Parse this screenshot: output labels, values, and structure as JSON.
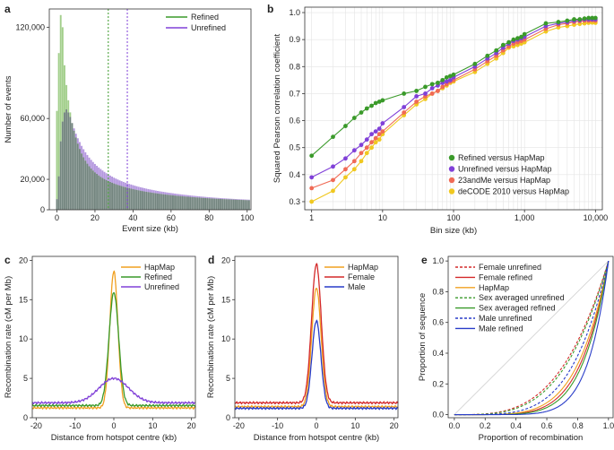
{
  "colors": {
    "refined": "#3a9a2a",
    "refined_fill": "#a3cf8c",
    "unrefined": "#8040d8",
    "unrefined_fill": "#b396de",
    "hapmap": "#f0a020",
    "female": "#d42a2a",
    "male": "#283cc8",
    "d23": "#f06a55",
    "decode": "#f0c820",
    "overlap": "#5a7068"
  },
  "chart_data": [
    {
      "panel": "a",
      "type": "bar",
      "xlabel": "Event size (kb)",
      "ylabel": "Number of events",
      "xlim": [
        -4,
        102
      ],
      "ylim": [
        0,
        132000
      ],
      "xticks": [
        0,
        20,
        40,
        60,
        80,
        100
      ],
      "yticks": [
        0,
        20000,
        60000,
        120000
      ],
      "ytick_labels": [
        "0",
        "20,000",
        "60,000",
        "120,000"
      ],
      "legend": [
        "Refined",
        "Unrefined"
      ],
      "vlines": [
        {
          "x": 27,
          "series": "Refined"
        },
        {
          "x": 37,
          "series": "Unrefined"
        }
      ],
      "series": [
        {
          "name": "Refined",
          "x": [
            0,
            1,
            2,
            3,
            4,
            5,
            6,
            7,
            8,
            9,
            10,
            11,
            12,
            13,
            14,
            15,
            16,
            17,
            18,
            19,
            20,
            21,
            22,
            23,
            24,
            25,
            26,
            27,
            28,
            29,
            30,
            31,
            32,
            33,
            34,
            35,
            36,
            37,
            38,
            39,
            40,
            41,
            42,
            43,
            44,
            45,
            46,
            47,
            48,
            49,
            50,
            51,
            52,
            53,
            54,
            55,
            56,
            57,
            58,
            59,
            60,
            61,
            62,
            63,
            64,
            65,
            66,
            67,
            68,
            69,
            70,
            71,
            72,
            73,
            74,
            75,
            76,
            77,
            78,
            79,
            80,
            81,
            82,
            83,
            84,
            85,
            86,
            87,
            88,
            89,
            90,
            91,
            92,
            93,
            94,
            95,
            96,
            97,
            98,
            99,
            100,
            101
          ],
          "values": [
            65000,
            103000,
            128000,
            120000,
            95000,
            82000,
            72000,
            64000,
            57000,
            52000,
            47500,
            43500,
            40000,
            37000,
            34500,
            32300,
            30300,
            28600,
            27100,
            25800,
            24600,
            23600,
            22600,
            21700,
            20900,
            20200,
            19500,
            18900,
            18300,
            17800,
            17300,
            16800,
            16400,
            16000,
            15600,
            15200,
            14850,
            14500,
            14200,
            13900,
            13600,
            13300,
            13050,
            12800,
            12550,
            12300,
            12050,
            11850,
            11650,
            11450,
            11250,
            11050,
            10870,
            10700,
            10530,
            10370,
            10210,
            10060,
            9910,
            9770,
            9630,
            9500,
            9370,
            9240,
            9120,
            9000,
            8880,
            8770,
            8660,
            8550,
            8450,
            8350,
            8250,
            8150,
            8060,
            7970,
            7880,
            7790,
            7710,
            7630,
            7550,
            7470,
            7390,
            7320,
            7250,
            7180,
            7110,
            7040,
            6980,
            6920,
            6860,
            6800,
            6740,
            6680,
            6630,
            6570,
            6520,
            6470,
            6420,
            6370,
            6320,
            6270
          ]
        },
        {
          "name": "Unrefined",
          "x": [
            0,
            1,
            2,
            3,
            4,
            5,
            6,
            7,
            8,
            9,
            10,
            11,
            12,
            13,
            14,
            15,
            16,
            17,
            18,
            19,
            20,
            21,
            22,
            23,
            24,
            25,
            26,
            27,
            28,
            29,
            30,
            31,
            32,
            33,
            34,
            35,
            36,
            37,
            38,
            39,
            40,
            41,
            42,
            43,
            44,
            45,
            46,
            47,
            48,
            49,
            50,
            51,
            52,
            53,
            54,
            55,
            56,
            57,
            58,
            59,
            60,
            61,
            62,
            63,
            64,
            65,
            66,
            67,
            68,
            69,
            70,
            71,
            72,
            73,
            74,
            75,
            76,
            77,
            78,
            79,
            80,
            81,
            82,
            83,
            84,
            85,
            86,
            87,
            88,
            89,
            90,
            91,
            92,
            93,
            94,
            95,
            96,
            97,
            98,
            99,
            100,
            101
          ],
          "values": [
            7000,
            22000,
            45000,
            58000,
            64000,
            66000,
            64000,
            61000,
            57000,
            53500,
            50000,
            47000,
            44500,
            42000,
            39800,
            37800,
            36000,
            34300,
            32800,
            31400,
            30100,
            28900,
            27800,
            26800,
            25800,
            24900,
            24000,
            23200,
            22500,
            21800,
            21100,
            20500,
            19900,
            19300,
            18800,
            18300,
            17800,
            17400,
            17000,
            16600,
            16200,
            15800,
            15450,
            15100,
            14800,
            14500,
            14200,
            13900,
            13600,
            13350,
            13100,
            12850,
            12600,
            12350,
            12150,
            11950,
            11750,
            11550,
            11350,
            11170,
            10990,
            10810,
            10640,
            10470,
            10310,
            10150,
            10000,
            9850,
            9710,
            9570,
            9430,
            9300,
            9170,
            9040,
            8920,
            8800,
            8680,
            8570,
            8460,
            8350,
            8250,
            8150,
            8050,
            7950,
            7860,
            7770,
            7680,
            7590,
            7510,
            7430,
            7350,
            7270,
            7200,
            7130,
            7060,
            6990,
            6920,
            6860,
            6800,
            6740,
            6680,
            6620
          ]
        }
      ]
    },
    {
      "panel": "b",
      "type": "line",
      "xscale": "log",
      "xlabel": "Bin size (kb)",
      "ylabel": "Squared Pearson correlation coefficient",
      "xlim": [
        0.8,
        12500
      ],
      "ylim": [
        0.27,
        1.02
      ],
      "xticks": [
        1,
        10,
        100,
        1000,
        10000
      ],
      "xtick_labels": [
        "1",
        "10",
        "100",
        "1,000",
        "10,000"
      ],
      "yticks": [
        0.3,
        0.4,
        0.5,
        0.6,
        0.7,
        0.8,
        0.9,
        1.0
      ],
      "ytick_labels": [
        "0.3",
        "0.4",
        "0.5",
        "0.6",
        "0.7",
        "0.8",
        "0.9",
        "1.0"
      ],
      "x": [
        1,
        2,
        3,
        4,
        5,
        6,
        7,
        8,
        9,
        10,
        20,
        30,
        40,
        50,
        60,
        70,
        80,
        90,
        100,
        200,
        300,
        400,
        500,
        600,
        700,
        800,
        900,
        1000,
        2000,
        3000,
        4000,
        5000,
        6000,
        7000,
        8000,
        9000,
        10000
      ],
      "series": [
        {
          "name": "Refined versus HapMap",
          "key": "refined",
          "values": [
            0.47,
            0.54,
            0.58,
            0.61,
            0.63,
            0.645,
            0.655,
            0.665,
            0.67,
            0.675,
            0.7,
            0.71,
            0.725,
            0.735,
            0.74,
            0.75,
            0.76,
            0.765,
            0.77,
            0.81,
            0.84,
            0.86,
            0.88,
            0.89,
            0.9,
            0.905,
            0.91,
            0.92,
            0.96,
            0.965,
            0.97,
            0.975,
            0.975,
            0.978,
            0.98,
            0.98,
            0.98
          ]
        },
        {
          "name": "Unrefined versus HapMap",
          "key": "unrefined",
          "values": [
            0.39,
            0.43,
            0.46,
            0.49,
            0.51,
            0.53,
            0.55,
            0.56,
            0.57,
            0.59,
            0.65,
            0.69,
            0.7,
            0.72,
            0.73,
            0.74,
            0.745,
            0.75,
            0.76,
            0.8,
            0.83,
            0.85,
            0.87,
            0.885,
            0.895,
            0.9,
            0.905,
            0.91,
            0.95,
            0.96,
            0.965,
            0.97,
            0.972,
            0.975,
            0.975,
            0.975,
            0.975
          ]
        },
        {
          "name": "23andMe versus HapMap",
          "key": "d23",
          "values": [
            0.35,
            0.38,
            0.42,
            0.45,
            0.48,
            0.5,
            0.52,
            0.535,
            0.55,
            0.56,
            0.63,
            0.67,
            0.69,
            0.7,
            0.71,
            0.725,
            0.735,
            0.745,
            0.75,
            0.79,
            0.82,
            0.84,
            0.86,
            0.875,
            0.885,
            0.89,
            0.895,
            0.9,
            0.94,
            0.955,
            0.96,
            0.965,
            0.968,
            0.97,
            0.97,
            0.972,
            0.97
          ]
        },
        {
          "name": "deCODE 2010 versus HapMap",
          "key": "decode",
          "values": [
            0.3,
            0.34,
            0.39,
            0.42,
            0.45,
            0.48,
            0.5,
            0.52,
            0.53,
            0.55,
            0.62,
            0.66,
            0.68,
            0.7,
            0.71,
            0.72,
            0.73,
            0.74,
            0.745,
            0.78,
            0.81,
            0.83,
            0.85,
            0.87,
            0.875,
            0.88,
            0.885,
            0.89,
            0.93,
            0.945,
            0.95,
            0.955,
            0.958,
            0.96,
            0.962,
            0.963,
            0.962
          ]
        }
      ]
    },
    {
      "panel": "c",
      "type": "line",
      "xlabel": "Distance from hotspot centre (kb)",
      "ylabel": "Recombination rate (cM per Mb)",
      "xlim": [
        -21,
        21
      ],
      "ylim": [
        0,
        20.5
      ],
      "xticks": [
        -20,
        -10,
        0,
        10,
        20
      ],
      "yticks": [
        0,
        5,
        10,
        15,
        20
      ],
      "series": [
        {
          "name": "HapMap",
          "key": "hapmap",
          "baseline": 1.25,
          "peak": 18.6,
          "width": 1.05
        },
        {
          "name": "Refined",
          "key": "refined",
          "baseline": 1.55,
          "peak": 15.9,
          "width": 1.25
        },
        {
          "name": "Unrefined",
          "key": "unrefined",
          "baseline": 1.9,
          "peak": 5.0,
          "width": 3.8
        }
      ]
    },
    {
      "panel": "d",
      "type": "line",
      "xlabel": "Distance from hotspot centre (kb)",
      "ylabel": "Recombination rate (cM per Mb)",
      "xlim": [
        -21,
        21
      ],
      "ylim": [
        0,
        20.5
      ],
      "xticks": [
        -20,
        -10,
        0,
        10,
        20
      ],
      "yticks": [
        0,
        5,
        10,
        15,
        20
      ],
      "series": [
        {
          "name": "HapMap",
          "key": "hapmap",
          "baseline": 1.4,
          "peak": 16.5,
          "width": 1.2
        },
        {
          "name": "Female",
          "key": "female",
          "baseline": 1.9,
          "peak": 19.5,
          "width": 1.25
        },
        {
          "name": "Male",
          "key": "male",
          "baseline": 1.2,
          "peak": 12.3,
          "width": 1.15
        }
      ]
    },
    {
      "panel": "e",
      "type": "line",
      "xlabel": "Proportion of recombination",
      "ylabel": "Proportion of sequence",
      "xlim": [
        -0.04,
        1.03
      ],
      "ylim": [
        -0.02,
        1.03
      ],
      "xticks": [
        0,
        0.2,
        0.4,
        0.6,
        0.8,
        1.0
      ],
      "xtick_labels": [
        "0.0",
        "0.2",
        "0.4",
        "0.6",
        "0.8",
        "1.0"
      ],
      "yticks": [
        0,
        0.2,
        0.4,
        0.6,
        0.8,
        1.0
      ],
      "ytick_labels": [
        "0.0",
        "0.2",
        "0.4",
        "0.6",
        "0.8",
        "1.0"
      ],
      "series": [
        {
          "name": "Female unrefined",
          "key": "female",
          "dash": true,
          "exponent": 3.3
        },
        {
          "name": "Female refined",
          "key": "female",
          "dash": false,
          "exponent": 5.5
        },
        {
          "name": "HapMap",
          "key": "hapmap",
          "dash": false,
          "exponent": 5.0
        },
        {
          "name": "Sex averaged unrefined",
          "key": "refined",
          "dash": true,
          "exponent": 3.5
        },
        {
          "name": "Sex averaged refined",
          "key": "refined",
          "dash": false,
          "exponent": 6.0
        },
        {
          "name": "Male unrefined",
          "key": "male",
          "dash": true,
          "exponent": 4.3
        },
        {
          "name": "Male refined",
          "key": "male",
          "dash": false,
          "exponent": 7.5
        }
      ]
    }
  ]
}
